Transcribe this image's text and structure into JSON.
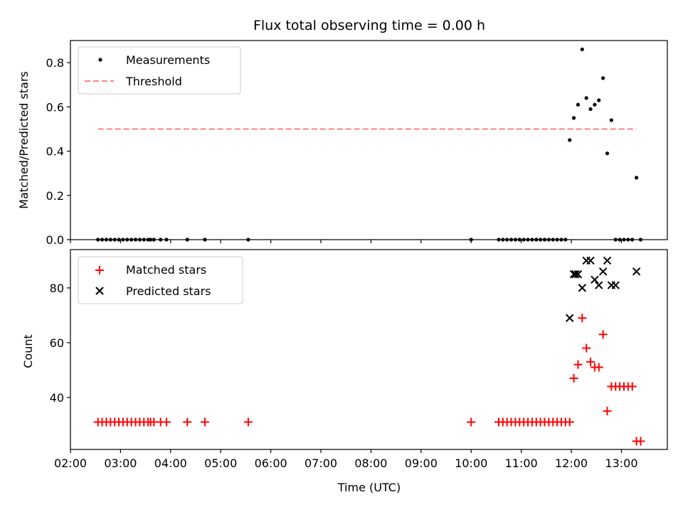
{
  "chart_data": [
    {
      "type": "scatter",
      "title": "Flux total observing time = 0.00 h",
      "ylabel": "Matched/Predicted stars",
      "xlabel": "",
      "ylim": [
        0,
        0.9
      ],
      "yticks": [
        "0.0",
        "0.2",
        "0.4",
        "0.6",
        "0.8"
      ],
      "yticks_values": [
        0,
        0.2,
        0.4,
        0.6,
        0.8
      ],
      "legend_position": "upper-left",
      "series": [
        {
          "name": "Measurements",
          "marker": "dot",
          "color": "#000000",
          "x": [
            "02:33",
            "02:38",
            "02:43",
            "02:48",
            "02:53",
            "02:58",
            "03:03",
            "03:08",
            "03:13",
            "03:18",
            "03:23",
            "03:28",
            "03:33",
            "03:36",
            "03:40",
            "03:48",
            "03:55",
            "04:20",
            "04:41",
            "05:33",
            "10:00",
            "10:33",
            "10:38",
            "10:43",
            "10:48",
            "10:53",
            "10:58",
            "11:03",
            "11:08",
            "11:13",
            "11:18",
            "11:23",
            "11:28",
            "11:33",
            "11:38",
            "11:43",
            "11:48",
            "11:53",
            "11:58",
            "12:03",
            "12:08",
            "12:13",
            "12:18",
            "12:23",
            "12:28",
            "12:33",
            "12:38",
            "12:43",
            "12:48",
            "12:53",
            "12:58",
            "13:03",
            "13:08",
            "13:13",
            "13:18",
            "13:23"
          ],
          "y": [
            0,
            0,
            0,
            0,
            0,
            0,
            0,
            0,
            0,
            0,
            0,
            0,
            0,
            0,
            0,
            0,
            0,
            0,
            0,
            0,
            0,
            0,
            0,
            0,
            0,
            0,
            0,
            0,
            0,
            0,
            0,
            0,
            0,
            0,
            0,
            0,
            0,
            0,
            0.45,
            0.55,
            0.61,
            0.86,
            0.64,
            0.59,
            0.61,
            0.63,
            0.73,
            0.39,
            0.54,
            0,
            0,
            0,
            0,
            0,
            0.28,
            0
          ]
        },
        {
          "name": "Threshold",
          "style": "dashed-line",
          "color": "#ff7f7f",
          "x": [
            "02:33",
            "13:18"
          ],
          "y": [
            0.5,
            0.5
          ]
        }
      ]
    },
    {
      "type": "scatter",
      "title": "",
      "xlabel": "Time (UTC)",
      "ylabel": "Count",
      "ylim": [
        21,
        94
      ],
      "yticks": [
        "40",
        "60",
        "80"
      ],
      "yticks_values": [
        40,
        60,
        80
      ],
      "xlim": [
        "02:00",
        "13:55"
      ],
      "xticks": [
        "02:00",
        "03:00",
        "04:00",
        "05:00",
        "06:00",
        "07:00",
        "08:00",
        "09:00",
        "10:00",
        "11:00",
        "12:00",
        "13:00"
      ],
      "legend_position": "upper-left",
      "series": [
        {
          "name": "Matched stars",
          "marker": "plus",
          "color": "#ff0000",
          "x": [
            "02:33",
            "02:38",
            "02:43",
            "02:48",
            "02:53",
            "02:58",
            "03:03",
            "03:08",
            "03:13",
            "03:18",
            "03:23",
            "03:28",
            "03:33",
            "03:36",
            "03:40",
            "03:48",
            "03:55",
            "04:20",
            "04:41",
            "05:33",
            "10:00",
            "10:33",
            "10:38",
            "10:43",
            "10:48",
            "10:53",
            "10:58",
            "11:03",
            "11:08",
            "11:13",
            "11:18",
            "11:23",
            "11:28",
            "11:33",
            "11:38",
            "11:43",
            "11:48",
            "11:53",
            "11:58",
            "12:03",
            "12:08",
            "12:13",
            "12:18",
            "12:23",
            "12:28",
            "12:33",
            "12:38",
            "12:43",
            "12:48",
            "12:53",
            "12:58",
            "13:03",
            "13:08",
            "13:13",
            "13:18",
            "13:23"
          ],
          "y": [
            31,
            31,
            31,
            31,
            31,
            31,
            31,
            31,
            31,
            31,
            31,
            31,
            31,
            31,
            31,
            31,
            31,
            31,
            31,
            31,
            31,
            31,
            31,
            31,
            31,
            31,
            31,
            31,
            31,
            31,
            31,
            31,
            31,
            31,
            31,
            31,
            31,
            31,
            31,
            47,
            52,
            69,
            58,
            53,
            51,
            51,
            63,
            35,
            44,
            44,
            44,
            44,
            44,
            44,
            24,
            24
          ]
        },
        {
          "name": "Predicted stars",
          "marker": "x",
          "color": "#000000",
          "x": [
            "11:58",
            "12:03",
            "12:05",
            "12:08",
            "12:13",
            "12:18",
            "12:23",
            "12:28",
            "12:33",
            "12:38",
            "12:43",
            "12:48",
            "12:53",
            "13:18"
          ],
          "y": [
            69,
            85,
            85,
            85,
            80,
            90,
            90,
            83,
            81,
            86,
            90,
            81,
            81,
            86
          ]
        }
      ]
    }
  ]
}
